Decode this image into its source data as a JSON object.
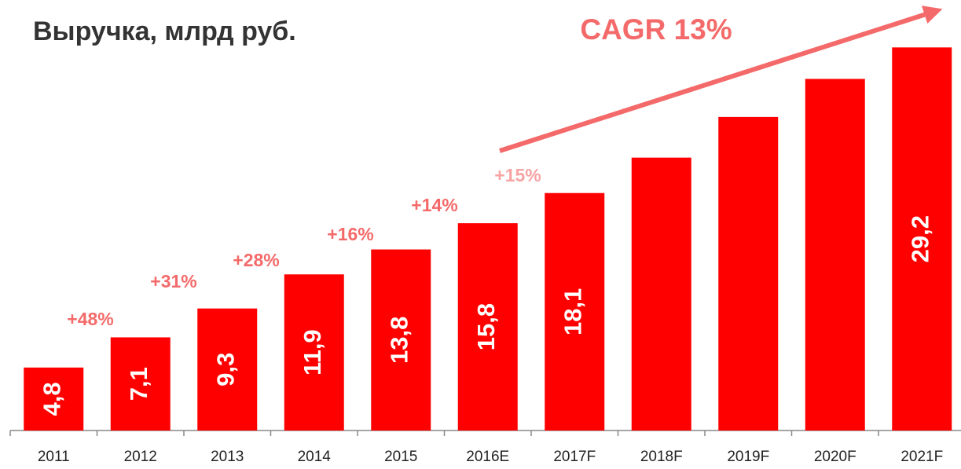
{
  "chart_data": {
    "type": "bar",
    "title": "Выручка, млрд руб.",
    "categories": [
      "2011",
      "2012",
      "2013",
      "2014",
      "2015",
      "2016E",
      "2017F",
      "2018F",
      "2019F",
      "2020F",
      "2021F"
    ],
    "values": [
      4.8,
      7.1,
      9.3,
      11.9,
      13.8,
      15.8,
      18.1,
      20.8,
      23.9,
      26.8,
      29.2
    ],
    "value_labels": [
      "4,8",
      "7,1",
      "9,3",
      "11,9",
      "13,8",
      "15,8",
      "18,1",
      null,
      null,
      null,
      "29,2"
    ],
    "color": "#ff0000",
    "annotations": [
      "+48%",
      "+31%",
      "+28%",
      "+16%",
      "+14%",
      "+15%"
    ],
    "cagr_label": "CAGR 13%"
  }
}
